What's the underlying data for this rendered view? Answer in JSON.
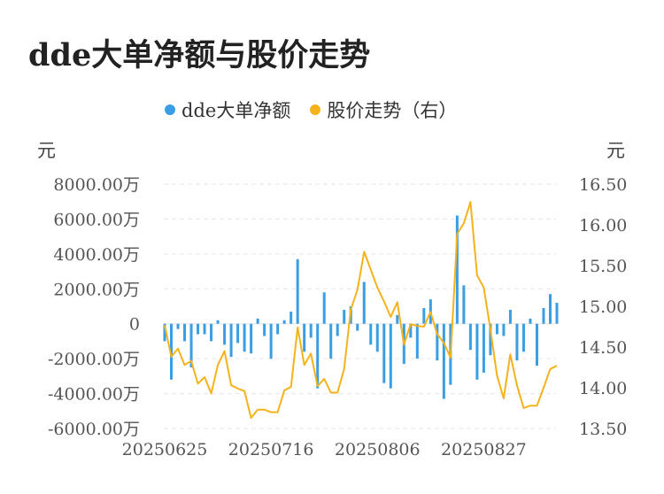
{
  "title": "dde大单净额与股价走势",
  "legend": {
    "series1": "dde大单净额",
    "series2": "股价走势（右）"
  },
  "colors": {
    "bar": "#3a9ee4",
    "line": "#f5b31b",
    "grid": "#e6e6e6"
  },
  "chart_data": {
    "type": "bar",
    "title": "dde大单净额与股价走势",
    "left_axis": {
      "unit": "元",
      "min": -6000,
      "max": 8000,
      "ticks": [
        {
          "value": 8000,
          "label": "8000.00万"
        },
        {
          "value": 6000,
          "label": "6000.00万"
        },
        {
          "value": 4000,
          "label": "4000.00万"
        },
        {
          "value": 2000,
          "label": "2000.00万"
        },
        {
          "value": 0,
          "label": "0"
        },
        {
          "value": -2000,
          "label": "-2000.00万"
        },
        {
          "value": -4000,
          "label": "-4000.00万"
        },
        {
          "value": -6000,
          "label": "-6000.00万"
        }
      ]
    },
    "right_axis": {
      "unit": "元",
      "min": 13.5,
      "max": 16.5,
      "ticks": [
        {
          "value": 16.5,
          "label": "16.50"
        },
        {
          "value": 16.0,
          "label": "16.00"
        },
        {
          "value": 15.5,
          "label": "15.50"
        },
        {
          "value": 15.0,
          "label": "15.00"
        },
        {
          "value": 14.5,
          "label": "14.50"
        },
        {
          "value": 14.0,
          "label": "14.00"
        },
        {
          "value": 13.5,
          "label": "13.50"
        }
      ]
    },
    "x_tick_labels": [
      {
        "index": 0,
        "label": "20250625"
      },
      {
        "index": 16,
        "label": "20250716"
      },
      {
        "index": 32,
        "label": "20250806"
      },
      {
        "index": 48,
        "label": "20250827"
      }
    ],
    "grid": true,
    "legend_position": "top-center",
    "series": [
      {
        "name": "dde大单净额",
        "type": "bar",
        "axis": "left",
        "values": [
          -1000,
          -3200,
          -300,
          -1000,
          -2500,
          -600,
          -600,
          -1000,
          200,
          -1200,
          -1900,
          -1100,
          -1600,
          -1700,
          300,
          -700,
          -2000,
          -600,
          200,
          700,
          3700,
          -1600,
          -800,
          -3700,
          1800,
          -2000,
          -700,
          800,
          1000,
          -400,
          2400,
          -1200,
          -1600,
          -3400,
          -3700,
          500,
          -2300,
          -800,
          -2000,
          900,
          1400,
          -2100,
          -4300,
          -3500,
          6200,
          2200,
          -1500,
          -3200,
          -2800,
          -1800,
          -600,
          -700,
          800,
          -2100,
          -1600,
          300,
          -2400,
          900,
          1700,
          1200
        ]
      },
      {
        "name": "股价走势（右）",
        "type": "line",
        "axis": "right",
        "values": [
          14.77,
          14.38,
          14.48,
          14.28,
          14.33,
          14.05,
          14.13,
          13.93,
          14.28,
          14.45,
          14.03,
          13.99,
          13.96,
          13.63,
          13.73,
          13.73,
          13.7,
          13.7,
          13.97,
          14.01,
          14.74,
          14.28,
          14.42,
          14.02,
          14.11,
          13.94,
          13.94,
          14.23,
          14.96,
          15.2,
          15.67,
          15.45,
          15.23,
          15.06,
          14.87,
          15.05,
          14.53,
          14.78,
          14.76,
          14.75,
          14.93,
          14.66,
          14.55,
          14.37,
          15.89,
          16.02,
          16.28,
          15.38,
          15.23,
          14.72,
          14.15,
          13.87,
          14.41,
          14.03,
          13.75,
          13.78,
          13.78,
          14.0,
          14.23,
          14.27
        ]
      }
    ]
  }
}
